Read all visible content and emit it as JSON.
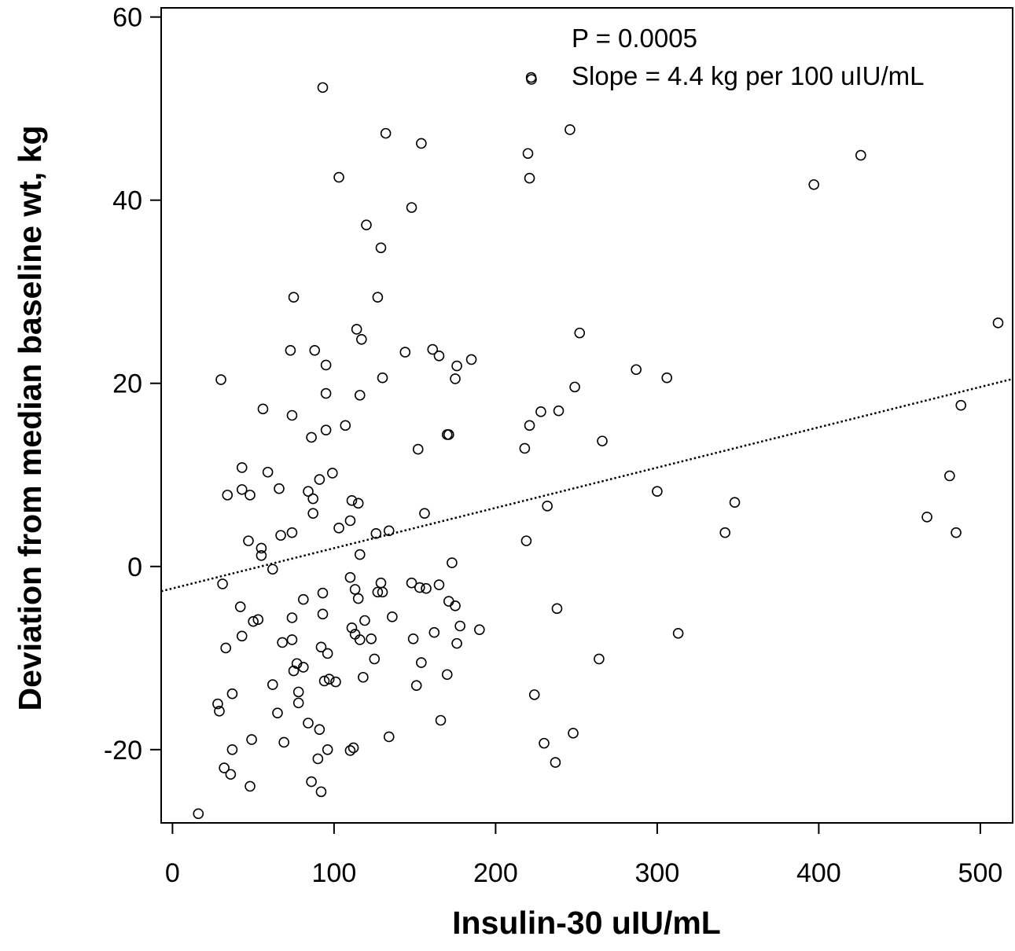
{
  "chart_data": {
    "type": "scatter",
    "title": "",
    "xlabel": "Insulin-30 uIU/mL",
    "ylabel": "Deviation from median baseline wt, kg",
    "xlim": [
      -7,
      520
    ],
    "ylim": [
      -28,
      61
    ],
    "xticks": [
      "0",
      "100",
      "200",
      "300",
      "400",
      "500"
    ],
    "xtick_values": [
      0,
      100,
      200,
      300,
      400,
      500
    ],
    "yticks": [
      "-20",
      "0",
      "20",
      "40",
      "60"
    ],
    "ytick_values": [
      -20,
      0,
      20,
      40,
      60
    ],
    "grid": false,
    "marker": "open-circle",
    "annotations": [
      "P = 0.0005",
      "Slope = 4.4 kg per 100 uIU/mL"
    ],
    "trend_line": {
      "style": "dotted",
      "intercept": -2.4,
      "slope": 0.044,
      "x_range": [
        -7,
        520
      ]
    },
    "points": [
      [
        16,
        -27.0
      ],
      [
        28,
        -15.0
      ],
      [
        29,
        -15.8
      ],
      [
        30,
        20.4
      ],
      [
        31,
        -1.9
      ],
      [
        32,
        -22.0
      ],
      [
        33,
        -8.9
      ],
      [
        34,
        7.8
      ],
      [
        36,
        -22.7
      ],
      [
        37,
        -20.0
      ],
      [
        37,
        -13.9
      ],
      [
        42,
        -4.4
      ],
      [
        43,
        -7.6
      ],
      [
        43,
        8.4
      ],
      [
        43,
        10.8
      ],
      [
        47,
        2.8
      ],
      [
        48,
        7.8
      ],
      [
        48,
        -24.0
      ],
      [
        49,
        -18.9
      ],
      [
        50,
        -6.0
      ],
      [
        53,
        -5.8
      ],
      [
        55,
        1.2
      ],
      [
        55,
        2.0
      ],
      [
        56,
        17.2
      ],
      [
        59,
        10.3
      ],
      [
        62,
        -0.3
      ],
      [
        62,
        -12.9
      ],
      [
        65,
        -16.0
      ],
      [
        66,
        8.5
      ],
      [
        67,
        3.4
      ],
      [
        68,
        -8.3
      ],
      [
        69,
        -19.2
      ],
      [
        73,
        23.6
      ],
      [
        74,
        16.5
      ],
      [
        74,
        3.7
      ],
      [
        74,
        -5.6
      ],
      [
        74,
        -8.0
      ],
      [
        75,
        29.4
      ],
      [
        75,
        -11.4
      ],
      [
        77,
        -10.6
      ],
      [
        78,
        -13.7
      ],
      [
        78,
        -14.9
      ],
      [
        81,
        -3.6
      ],
      [
        81,
        -11.0
      ],
      [
        84,
        -17.1
      ],
      [
        84,
        8.2
      ],
      [
        86,
        -23.5
      ],
      [
        86,
        14.1
      ],
      [
        87,
        7.4
      ],
      [
        87,
        5.8
      ],
      [
        88,
        23.6
      ],
      [
        90,
        -21.0
      ],
      [
        91,
        9.5
      ],
      [
        91,
        -17.8
      ],
      [
        92,
        -8.8
      ],
      [
        92,
        -24.6
      ],
      [
        93,
        52.3
      ],
      [
        93,
        -5.2
      ],
      [
        93,
        -2.9
      ],
      [
        94,
        -12.5
      ],
      [
        95,
        22.0
      ],
      [
        95,
        18.9
      ],
      [
        95,
        14.9
      ],
      [
        96,
        -9.5
      ],
      [
        96,
        -20.0
      ],
      [
        97,
        -12.3
      ],
      [
        99,
        10.2
      ],
      [
        101,
        -12.6
      ],
      [
        103,
        42.5
      ],
      [
        103,
        4.2
      ],
      [
        107,
        15.4
      ],
      [
        110,
        -20.1
      ],
      [
        110,
        -1.2
      ],
      [
        110,
        5.0
      ],
      [
        111,
        -6.7
      ],
      [
        111,
        7.2
      ],
      [
        112,
        -19.8
      ],
      [
        113,
        -2.5
      ],
      [
        113,
        -7.4
      ],
      [
        114,
        25.9
      ],
      [
        115,
        6.9
      ],
      [
        115,
        -3.5
      ],
      [
        116,
        -8.0
      ],
      [
        116,
        18.7
      ],
      [
        116,
        1.3
      ],
      [
        117,
        24.8
      ],
      [
        118,
        -12.1
      ],
      [
        119,
        -5.9
      ],
      [
        120,
        37.3
      ],
      [
        123,
        -7.9
      ],
      [
        125,
        -10.1
      ],
      [
        126,
        3.6
      ],
      [
        127,
        -2.8
      ],
      [
        127,
        29.4
      ],
      [
        129,
        34.8
      ],
      [
        129,
        -1.8
      ],
      [
        130,
        20.6
      ],
      [
        130,
        -2.8
      ],
      [
        132,
        47.3
      ],
      [
        134,
        3.9
      ],
      [
        134,
        -18.6
      ],
      [
        136,
        -5.5
      ],
      [
        144,
        23.4
      ],
      [
        148,
        39.2
      ],
      [
        148,
        -1.8
      ],
      [
        149,
        -7.9
      ],
      [
        151,
        -13.0
      ],
      [
        152,
        12.8
      ],
      [
        153,
        -2.3
      ],
      [
        154,
        46.2
      ],
      [
        154,
        -10.5
      ],
      [
        156,
        5.8
      ],
      [
        157,
        -2.4
      ],
      [
        161,
        23.7
      ],
      [
        162,
        -7.2
      ],
      [
        165,
        23.0
      ],
      [
        165,
        -2.0
      ],
      [
        166,
        -16.8
      ],
      [
        170,
        14.4
      ],
      [
        170,
        -11.8
      ],
      [
        171,
        14.4
      ],
      [
        171,
        -3.8
      ],
      [
        173,
        0.4
      ],
      [
        175,
        20.5
      ],
      [
        175,
        -4.3
      ],
      [
        176,
        21.9
      ],
      [
        176,
        -8.4
      ],
      [
        178,
        -6.5
      ],
      [
        185,
        22.6
      ],
      [
        190,
        -6.9
      ],
      [
        218,
        12.9
      ],
      [
        219,
        2.8
      ],
      [
        220,
        45.1
      ],
      [
        221,
        15.4
      ],
      [
        221,
        42.4
      ],
      [
        222,
        53.4
      ],
      [
        224,
        -14.0
      ],
      [
        228,
        16.9
      ],
      [
        230,
        -19.3
      ],
      [
        232,
        6.6
      ],
      [
        237,
        -21.4
      ],
      [
        238,
        -4.6
      ],
      [
        239,
        17.0
      ],
      [
        246,
        47.7
      ],
      [
        248,
        -18.2
      ],
      [
        249,
        19.6
      ],
      [
        252,
        25.5
      ],
      [
        264,
        -10.1
      ],
      [
        266,
        13.7
      ],
      [
        287,
        21.5
      ],
      [
        300,
        8.2
      ],
      [
        306,
        20.6
      ],
      [
        313,
        -7.3
      ],
      [
        342,
        3.7
      ],
      [
        348,
        7.0
      ],
      [
        397,
        41.7
      ],
      [
        426,
        44.9
      ],
      [
        467,
        5.4
      ],
      [
        481,
        9.9
      ],
      [
        485,
        3.7
      ],
      [
        488,
        17.6
      ],
      [
        511,
        26.6
      ]
    ]
  }
}
